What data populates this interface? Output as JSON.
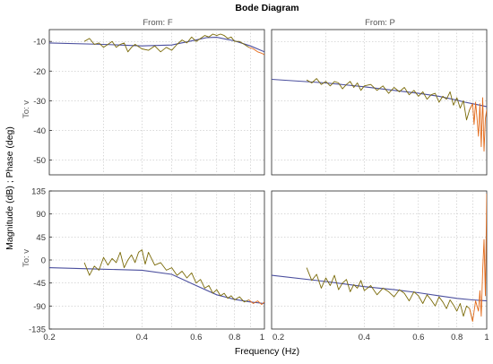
{
  "chart_data": {
    "type": "line",
    "title": "Bode Diagram",
    "xlabel": "Frequency  (Hz)",
    "ylabel": "Magnitude (dB) ; Phase (deg)",
    "x_scale": "log",
    "xlim": [
      0.2,
      1
    ],
    "x_ticks": [
      0.2,
      0.4,
      0.6,
      0.8,
      1
    ],
    "x_tick_labels": [
      "0.2",
      "0.4",
      "0.6",
      "0.8",
      "1"
    ],
    "grid": true,
    "column_labels": [
      "From: F",
      "From: P"
    ],
    "row_label": "To: v",
    "magnitude": {
      "ylim": [
        -55,
        -6
      ],
      "y_ticks": [
        -10,
        -20,
        -30,
        -40,
        -50
      ],
      "y_tick_labels": [
        "-10",
        "-20",
        "-30",
        "-40",
        "-50"
      ]
    },
    "phase": {
      "ylim": [
        -135,
        135
      ],
      "y_ticks": [
        135,
        90,
        45,
        0,
        -45,
        -90,
        -135
      ],
      "y_tick_labels": [
        "135",
        "90",
        "45",
        "0",
        "-45",
        "-90",
        "-135"
      ]
    },
    "colors": {
      "model": "#4b4f9e",
      "measured": "#7a6a08",
      "measured_high": "#e36a1a"
    },
    "panels": [
      {
        "id": "mag-F",
        "column": 0,
        "quantity": "magnitude",
        "model": {
          "x": [
            0.2,
            0.3,
            0.4,
            0.5,
            0.6,
            0.65,
            0.7,
            0.8,
            0.9,
            1.0
          ],
          "y": [
            -10.5,
            -11.0,
            -11.5,
            -11.2,
            -9.5,
            -8.7,
            -8.6,
            -9.8,
            -11.5,
            -13.5
          ]
        },
        "measured": {
          "x": [
            0.26,
            0.27,
            0.28,
            0.29,
            0.3,
            0.31,
            0.32,
            0.33,
            0.34,
            0.35,
            0.36,
            0.37,
            0.38,
            0.4,
            0.42,
            0.44,
            0.46,
            0.48,
            0.5,
            0.52,
            0.54,
            0.56,
            0.58,
            0.6,
            0.62,
            0.64,
            0.66,
            0.68,
            0.7,
            0.72,
            0.74,
            0.76,
            0.78,
            0.8,
            0.83,
            0.86,
            0.89,
            0.92,
            0.95,
            0.98,
            1.0
          ],
          "y": [
            -10.0,
            -9.0,
            -11.0,
            -10.5,
            -12.0,
            -11.0,
            -10.0,
            -12.0,
            -11.0,
            -10.5,
            -13.5,
            -12.0,
            -11.0,
            -12.5,
            -13.0,
            -11.5,
            -13.5,
            -12.0,
            -13.0,
            -11.0,
            -9.5,
            -10.5,
            -8.5,
            -10.0,
            -9.0,
            -8.0,
            -8.5,
            -7.5,
            -8.0,
            -7.5,
            -8.0,
            -9.0,
            -8.5,
            -10.0,
            -10.0,
            -11.0,
            -12.0,
            -12.5,
            -13.5,
            -14.0,
            -14.5
          ]
        }
      },
      {
        "id": "mag-P",
        "column": 1,
        "quantity": "magnitude",
        "model": {
          "x": [
            0.2,
            0.3,
            0.4,
            0.5,
            0.6,
            0.7,
            0.8,
            0.85,
            0.9,
            0.95,
            1.0
          ],
          "y": [
            -22.8,
            -24.0,
            -25.3,
            -26.5,
            -27.5,
            -28.5,
            -29.8,
            -30.5,
            -31.0,
            -31.5,
            -32.0
          ]
        },
        "measured": {
          "x": [
            0.26,
            0.27,
            0.28,
            0.29,
            0.3,
            0.31,
            0.32,
            0.33,
            0.34,
            0.35,
            0.36,
            0.37,
            0.38,
            0.39,
            0.4,
            0.42,
            0.44,
            0.46,
            0.48,
            0.5,
            0.52,
            0.54,
            0.56,
            0.58,
            0.6,
            0.62,
            0.64,
            0.66,
            0.68,
            0.7,
            0.72,
            0.74,
            0.76,
            0.78,
            0.8,
            0.82,
            0.84,
            0.86,
            0.88,
            0.9,
            0.91,
            0.92,
            0.93,
            0.94,
            0.95,
            0.96,
            0.97,
            0.98,
            0.99,
            1.0
          ],
          "y": [
            -23.0,
            -24.0,
            -22.5,
            -24.5,
            -23.5,
            -25.0,
            -23.5,
            -24.0,
            -26.0,
            -24.5,
            -23.5,
            -25.5,
            -24.0,
            -26.5,
            -25.0,
            -24.5,
            -26.5,
            -25.0,
            -27.5,
            -25.5,
            -27.0,
            -25.5,
            -28.0,
            -26.5,
            -28.5,
            -27.0,
            -29.5,
            -28.0,
            -27.5,
            -30.5,
            -28.5,
            -29.5,
            -27.0,
            -31.5,
            -29.0,
            -32.5,
            -30.0,
            -36.5,
            -33.0,
            -31.0,
            -38.0,
            -30.5,
            -36.0,
            -42.0,
            -31.0,
            -45.5,
            -29.0,
            -47.0,
            -36.0,
            -33.0
          ]
        }
      },
      {
        "id": "phase-F",
        "column": 0,
        "quantity": "phase",
        "model": {
          "x": [
            0.2,
            0.3,
            0.4,
            0.5,
            0.6,
            0.7,
            0.8,
            0.9,
            1.0
          ],
          "y": [
            -15,
            -18,
            -20,
            -28,
            -50,
            -68,
            -77,
            -82,
            -85
          ]
        },
        "measured": {
          "x": [
            0.26,
            0.27,
            0.28,
            0.29,
            0.3,
            0.31,
            0.32,
            0.33,
            0.34,
            0.35,
            0.36,
            0.37,
            0.38,
            0.39,
            0.4,
            0.41,
            0.42,
            0.44,
            0.46,
            0.48,
            0.5,
            0.52,
            0.54,
            0.56,
            0.58,
            0.6,
            0.62,
            0.64,
            0.66,
            0.68,
            0.7,
            0.72,
            0.74,
            0.76,
            0.78,
            0.8,
            0.83,
            0.86,
            0.89,
            0.92,
            0.95,
            0.98,
            1.0
          ],
          "y": [
            -5,
            -30,
            -12,
            -20,
            5,
            -10,
            3,
            -5,
            15,
            -15,
            0,
            10,
            -5,
            15,
            20,
            -8,
            15,
            -10,
            -5,
            -20,
            -15,
            -30,
            -22,
            -35,
            -25,
            -45,
            -38,
            -55,
            -50,
            -65,
            -58,
            -70,
            -65,
            -75,
            -70,
            -78,
            -72,
            -82,
            -78,
            -85,
            -80,
            -87,
            -82
          ]
        }
      },
      {
        "id": "phase-P",
        "column": 1,
        "quantity": "phase",
        "model": {
          "x": [
            0.2,
            0.3,
            0.4,
            0.5,
            0.6,
            0.7,
            0.8,
            0.9,
            1.0
          ],
          "y": [
            -30,
            -42,
            -52,
            -58,
            -64,
            -70,
            -75,
            -78,
            -80
          ]
        },
        "measured": {
          "x": [
            0.26,
            0.27,
            0.28,
            0.29,
            0.3,
            0.31,
            0.32,
            0.33,
            0.34,
            0.35,
            0.36,
            0.37,
            0.38,
            0.39,
            0.4,
            0.42,
            0.44,
            0.46,
            0.48,
            0.5,
            0.52,
            0.54,
            0.56,
            0.58,
            0.6,
            0.62,
            0.64,
            0.66,
            0.68,
            0.7,
            0.72,
            0.74,
            0.76,
            0.78,
            0.8,
            0.82,
            0.84,
            0.86,
            0.88,
            0.9,
            0.92,
            0.94,
            0.95,
            0.96,
            0.97,
            0.98,
            0.99,
            1.0
          ],
          "y": [
            -15,
            -40,
            -28,
            -55,
            -35,
            -50,
            -30,
            -58,
            -45,
            -38,
            -62,
            -48,
            -55,
            -40,
            -60,
            -50,
            -68,
            -55,
            -62,
            -72,
            -58,
            -65,
            -80,
            -62,
            -70,
            -85,
            -68,
            -78,
            -90,
            -72,
            -82,
            -95,
            -78,
            -88,
            -100,
            -85,
            -110,
            -90,
            -95,
            -120,
            -80,
            -100,
            -60,
            -110,
            -20,
            40,
            -70,
            130
          ]
        }
      }
    ]
  }
}
